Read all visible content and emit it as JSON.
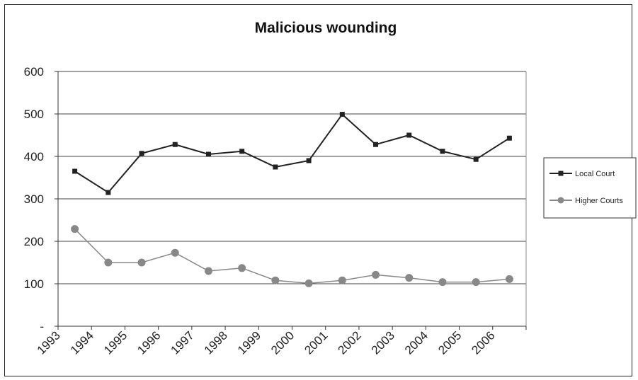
{
  "chart_data": {
    "type": "line",
    "title": "Malicious wounding",
    "xlabel": "",
    "ylabel": "",
    "x": [
      "1993",
      "1994",
      "1995",
      "1996",
      "1997",
      "1998",
      "1999",
      "2000",
      "2001",
      "2002",
      "2003",
      "2004",
      "2005",
      "2006"
    ],
    "ylim": [
      0,
      600
    ],
    "yticks": [
      0,
      100,
      200,
      300,
      400,
      500,
      600
    ],
    "ytick_labels": [
      "-",
      "100",
      "200",
      "300",
      "400",
      "500",
      "600"
    ],
    "grid": true,
    "legend": "right",
    "series": [
      {
        "name": "Local Court",
        "color": "#222222",
        "marker": "square",
        "values": [
          365,
          315,
          407,
          428,
          405,
          412,
          375,
          390,
          499,
          428,
          450,
          412,
          393,
          443
        ]
      },
      {
        "name": "Higher Courts",
        "color": "#888888",
        "marker": "circle",
        "values": [
          229,
          150,
          150,
          173,
          130,
          137,
          108,
          101,
          108,
          121,
          114,
          104,
          104,
          111
        ]
      }
    ]
  }
}
